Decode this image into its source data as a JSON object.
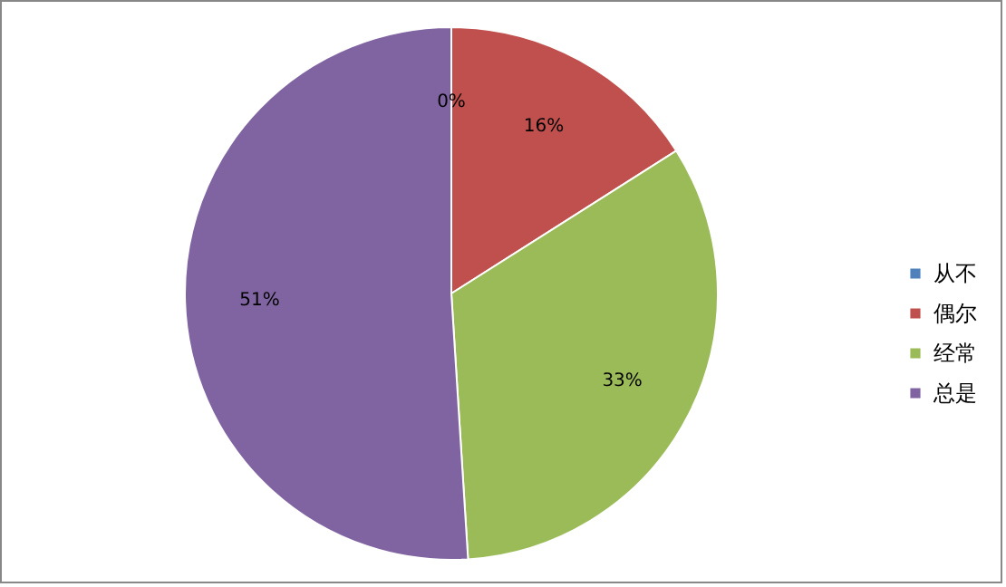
{
  "chart_data": {
    "type": "pie",
    "categories": [
      "从不",
      "偶尔",
      "经常",
      "总是"
    ],
    "values": [
      0,
      16,
      33,
      51
    ],
    "colors": [
      "#4f81bd",
      "#c0504d",
      "#9bbb59",
      "#8064a2"
    ],
    "value_labels": [
      "0%",
      "16%",
      "33%",
      "51%"
    ],
    "legend": "right"
  }
}
